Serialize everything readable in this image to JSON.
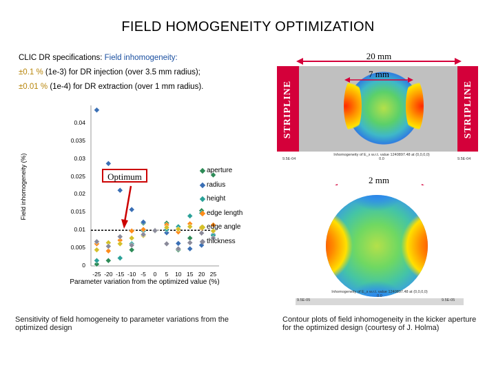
{
  "title": "FIELD HOMOGENEITY OPTIMIZATION",
  "specs": {
    "line1_prefix": "CLIC DR specifications: ",
    "line1_highlight": "Field inhomogeneity:",
    "line2_pm": "±0.1 %",
    "line2_rest": "  (1e-3) for DR injection (over 3.5 mm radius);",
    "line3_pm": "±0.01 %",
    "line3_rest": " (1e-4) for DR extraction (over 1 mm radius)."
  },
  "chart_data": {
    "type": "scatter",
    "title": "",
    "xlabel": "Parameter variation from the optimized value (%)",
    "ylabel": "Field inhomogeneity (%)",
    "xlim": [
      -27.5,
      27.5
    ],
    "ylim": [
      0,
      0.045
    ],
    "yticks": [
      "0",
      "0.005",
      "0.01",
      "0.015",
      "0.02",
      "0.025",
      "0.03",
      "0.035",
      "0.04"
    ],
    "xticks": [
      "-25",
      "-20",
      "-15",
      "-10",
      "-5",
      "0",
      "5",
      "10",
      "15",
      "20",
      "25"
    ],
    "threshold": 0.01,
    "series": [
      {
        "name": "aperture",
        "color": "#2e8b57",
        "shape": "diamond",
        "points": [
          [
            -25,
            0.0005
          ],
          [
            -20,
            0.0015
          ],
          [
            -15,
            0.0022
          ],
          [
            -10,
            0.0045
          ],
          [
            -5,
            0.012
          ],
          [
            0,
            0.0098
          ],
          [
            5,
            0.012
          ],
          [
            10,
            0.0045
          ],
          [
            15,
            0.0078
          ],
          [
            20,
            0.0155
          ],
          [
            25,
            0.0255
          ]
        ]
      },
      {
        "name": "radius",
        "color": "#3a6fb5",
        "shape": "diamond",
        "points": [
          [
            -25,
            0.0437
          ],
          [
            -20,
            0.0287
          ],
          [
            -15,
            0.0212
          ],
          [
            -10,
            0.0158
          ],
          [
            -5,
            0.0123
          ],
          [
            0,
            0.01
          ],
          [
            5,
            0.0093
          ],
          [
            10,
            0.0063
          ],
          [
            15,
            0.0048
          ],
          [
            20,
            0.0058
          ],
          [
            25,
            0.0088
          ]
        ]
      },
      {
        "name": "height",
        "color": "#2aa198",
        "shape": "diamond",
        "points": [
          [
            -25,
            0.0015
          ],
          [
            -15,
            0.0022
          ],
          [
            -10,
            0.0062
          ],
          [
            -5,
            0.0098
          ],
          [
            0,
            0.0098
          ],
          [
            5,
            0.0102
          ],
          [
            10,
            0.011
          ],
          [
            15,
            0.014
          ],
          [
            20,
            0.0148
          ],
          [
            25,
            0.0085
          ]
        ]
      },
      {
        "name": "edge length",
        "color": "#ff8c1a",
        "shape": "diamond",
        "points": [
          [
            -25,
            0.0062
          ],
          [
            -20,
            0.0042
          ],
          [
            -15,
            0.0072
          ],
          [
            -10,
            0.0098
          ],
          [
            -5,
            0.0102
          ],
          [
            0,
            0.0099
          ],
          [
            5,
            0.0115
          ],
          [
            10,
            0.0095
          ],
          [
            15,
            0.0118
          ],
          [
            20,
            0.0105
          ],
          [
            25,
            0.0115
          ]
        ]
      },
      {
        "name": "edge angle",
        "color": "#d4c02a",
        "shape": "diamond",
        "points": [
          [
            -25,
            0.0045
          ],
          [
            -20,
            0.0065
          ],
          [
            -15,
            0.0062
          ],
          [
            -10,
            0.0078
          ],
          [
            -5,
            0.0085
          ],
          [
            0,
            0.0099
          ],
          [
            5,
            0.0108
          ],
          [
            10,
            0.0103
          ],
          [
            15,
            0.011
          ],
          [
            20,
            0.0108
          ],
          [
            25,
            0.0098
          ]
        ]
      },
      {
        "name": "thickness",
        "color": "#8a8a9a",
        "shape": "diamond",
        "points": [
          [
            -25,
            0.0068
          ],
          [
            -20,
            0.0055
          ],
          [
            -15,
            0.0082
          ],
          [
            -10,
            0.0058
          ],
          [
            -5,
            0.0088
          ],
          [
            0,
            0.0099
          ],
          [
            5,
            0.0062
          ],
          [
            10,
            0.0048
          ],
          [
            15,
            0.0065
          ],
          [
            20,
            0.0092
          ],
          [
            25,
            0.0078
          ]
        ]
      }
    ]
  },
  "optimum_label": "Optimum",
  "contour_top": {
    "stripline_left": "STRIPLINE",
    "stripline_right": "STRIPLINE",
    "outer_dim": "20 mm",
    "inner_dim": "7 mm",
    "meta_center": "Inhomogeneity of E_x w.r.t. value 1240897.48 at (0,0,0,0)",
    "meta_center2": "0.0",
    "meta_left": "9.5E-04",
    "meta_right": "9.5E-04"
  },
  "contour_bottom": {
    "dim": "2 mm",
    "meta_center": "Inhomogeneity of E_x w.r.t. value 1240897.48 at (0,0,0,0)",
    "meta_center2": "0.0",
    "meta_left": "9.5E-05",
    "meta_right": "9.5E-05"
  },
  "caption_left": "Sensitivity of field homogeneity to parameter variations from the optimized design",
  "caption_right": "Contour plots of field inhomogeneity in the kicker aperture for the optimized design  (courtesy of J. Holma)",
  "colors": {
    "accent": "#cc0000",
    "threshold_line": "#000000"
  }
}
